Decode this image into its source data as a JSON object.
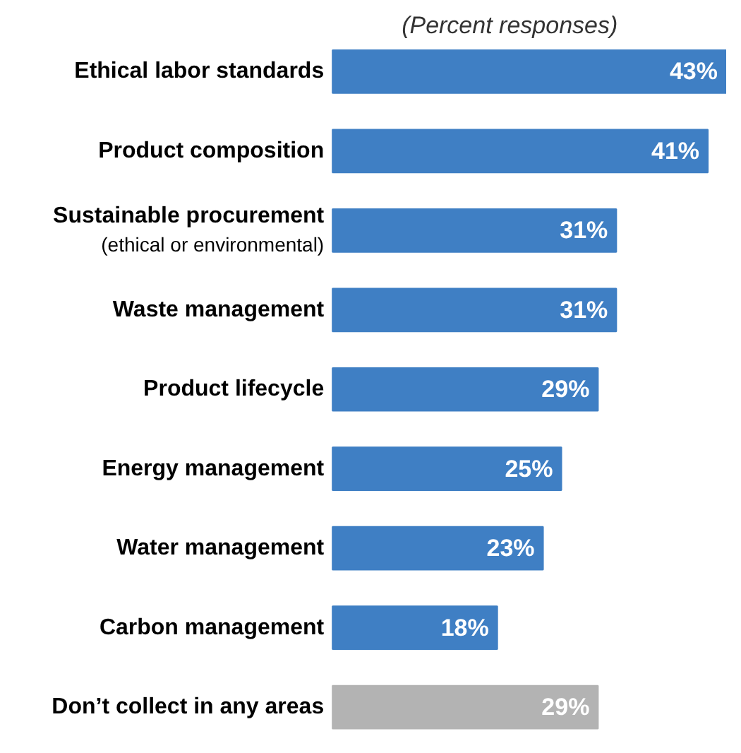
{
  "chart_data": {
    "type": "bar",
    "orientation": "horizontal",
    "title": "(Percent responses)",
    "categories": [
      "Ethical labor standards",
      "Product composition",
      "Sustainable procurement\n(ethical or environmental)",
      "Waste management",
      "Product lifecycle",
      "Energy management",
      "Water management",
      "Carbon management",
      "Don’t collect in any areas"
    ],
    "values": [
      43,
      41,
      31,
      31,
      29,
      25,
      23,
      18,
      29
    ],
    "colors": [
      "#3f7fc4",
      "#3f7fc4",
      "#3f7fc4",
      "#3f7fc4",
      "#3f7fc4",
      "#3f7fc4",
      "#3f7fc4",
      "#3f7fc4",
      "#b3b3b3"
    ],
    "value_labels": [
      "43%",
      "41%",
      "31%",
      "31%",
      "29%",
      "25%",
      "23%",
      "18%",
      "29%"
    ],
    "grid": false
  }
}
